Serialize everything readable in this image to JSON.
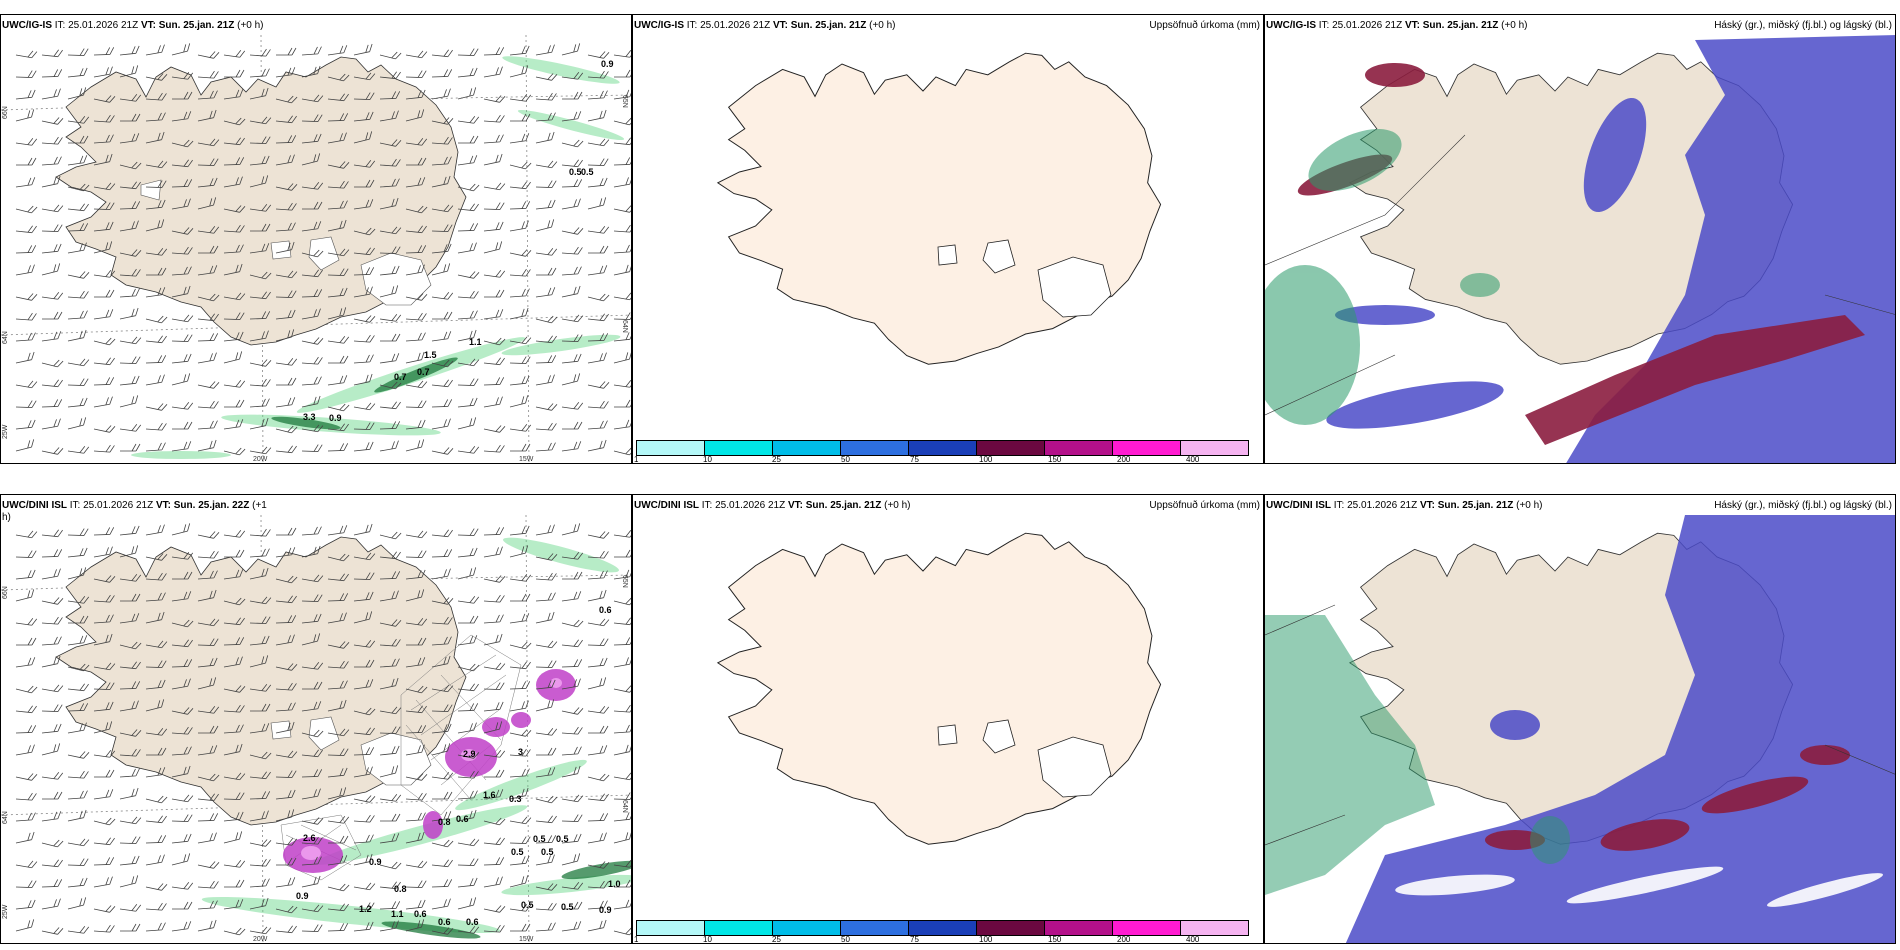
{
  "panels": {
    "top_left": {
      "model": "UWC/IG-IS",
      "it": "IT: 25.01.2026 21Z",
      "vt": "VT: Sun. 25.jan. 21Z",
      "lead": "(+0 h)",
      "lat_labels": [
        "66N",
        "64N",
        "25W"
      ],
      "lon_labels": [
        "20W",
        "15W"
      ],
      "lat_labels_right": [
        "65N",
        "64N"
      ],
      "values": [
        "0.9",
        "0.5",
        "0.5",
        "1.5",
        "1.1",
        "0.7",
        "0.7",
        "3.3",
        "0.9"
      ]
    },
    "top_mid": {
      "model": "UWC/IG-IS",
      "it": "IT: 25.01.2026 21Z",
      "vt": "VT: Sun. 25.jan. 21Z",
      "lead": "(+0 h)",
      "title": "Uppsöfnuð úrkoma (mm)"
    },
    "top_right": {
      "model": "UWC/IG-IS",
      "it": "IT: 25.01.2026 21Z",
      "vt": "VT: Sun. 25.jan. 21Z",
      "lead": "(+0 h)",
      "title": "Háský (gr.), miðský (fj.bl.) og lágský (bl.)"
    },
    "bot_left": {
      "model": "UWC/DINI ISL",
      "it": "IT: 25.01.2026 21Z",
      "vt": "VT: Sun. 25.jan. 22Z",
      "lead": "(+1",
      "lead2": "h)",
      "lat_labels": [
        "66N",
        "64N",
        "25W"
      ],
      "lon_labels": [
        "20W",
        "15W"
      ],
      "lat_labels_right": [
        "65N",
        "64N"
      ],
      "values": [
        "0.6",
        "2.9",
        "3",
        "1.6",
        "0.3",
        "0.8",
        "0.6",
        "0.5",
        "0.5",
        "0.5",
        "0.5",
        "2.6",
        "0.9",
        "0.9",
        "0.8",
        "1.2",
        "1.1",
        "0.6",
        "0.6",
        "0.6",
        "0.5",
        "0.5",
        "1.0",
        "0.9"
      ]
    },
    "bot_mid": {
      "model": "UWC/DINI ISL",
      "it": "IT: 25.01.2026 21Z",
      "vt": "VT: Sun. 25.jan. 21Z",
      "lead": "(+0 h)",
      "title": "Uppsöfnuð úrkoma (mm)"
    },
    "bot_right": {
      "model": "UWC/DINI ISL",
      "it": "IT: 25.01.2026 21Z",
      "vt": "VT: Sun. 25.jan. 21Z",
      "lead": "(+0 h)",
      "title": "Háský (gr.), miðský (fj.bl.) og lágský (bl.)"
    }
  },
  "legend": {
    "labels": [
      "1",
      "10",
      "25",
      "50",
      "75",
      "100",
      "150",
      "200",
      "400"
    ],
    "colors": [
      "#b3f7f7",
      "#00e6e6",
      "#00bde8",
      "#2d6fe0",
      "#1a3fb8",
      "#6b0840",
      "#b3108a",
      "#ff1ad1",
      "#f5b3f0"
    ]
  },
  "colors": {
    "land": "#ede3d5",
    "land_mid": "#fdf0e4",
    "precip_green": "#5fd483",
    "cloud_high": "#2a9a6a",
    "cloud_mid": "#8b1d3f",
    "cloud_low": "#4b4bc8",
    "magenta": "#c040c8"
  }
}
